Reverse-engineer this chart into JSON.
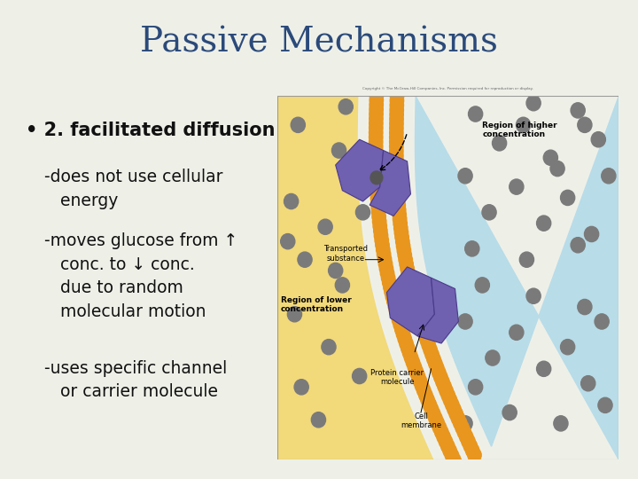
{
  "title": "Passive Mechanisms",
  "title_color": "#2b4a7a",
  "title_fontsize": 28,
  "title_bg": "#d4dfc0",
  "slide_bg": "#eef0e8",
  "content_bg": "#f8f8f5",
  "bullet_text": "2. facilitated diffusion",
  "sub_lines": [
    "-does not use cellular\n   energy",
    "-moves glucose from ↑\n   conc. to ↓ conc.\n   due to random\n   molecular motion",
    "-uses specific channel\n   or carrier molecule"
  ],
  "text_color": "#111111",
  "bullet_fontsize": 15,
  "sub_fontsize": 13.5,
  "img_left_color": "#f2d97a",
  "img_right_color": "#b8dce8",
  "membrane_color": "#e8961e",
  "protein_color": "#7060b0",
  "protein_edge": "#4a3a8a",
  "dot_color": "#7a7a7a",
  "label_fontsize": 6.0
}
